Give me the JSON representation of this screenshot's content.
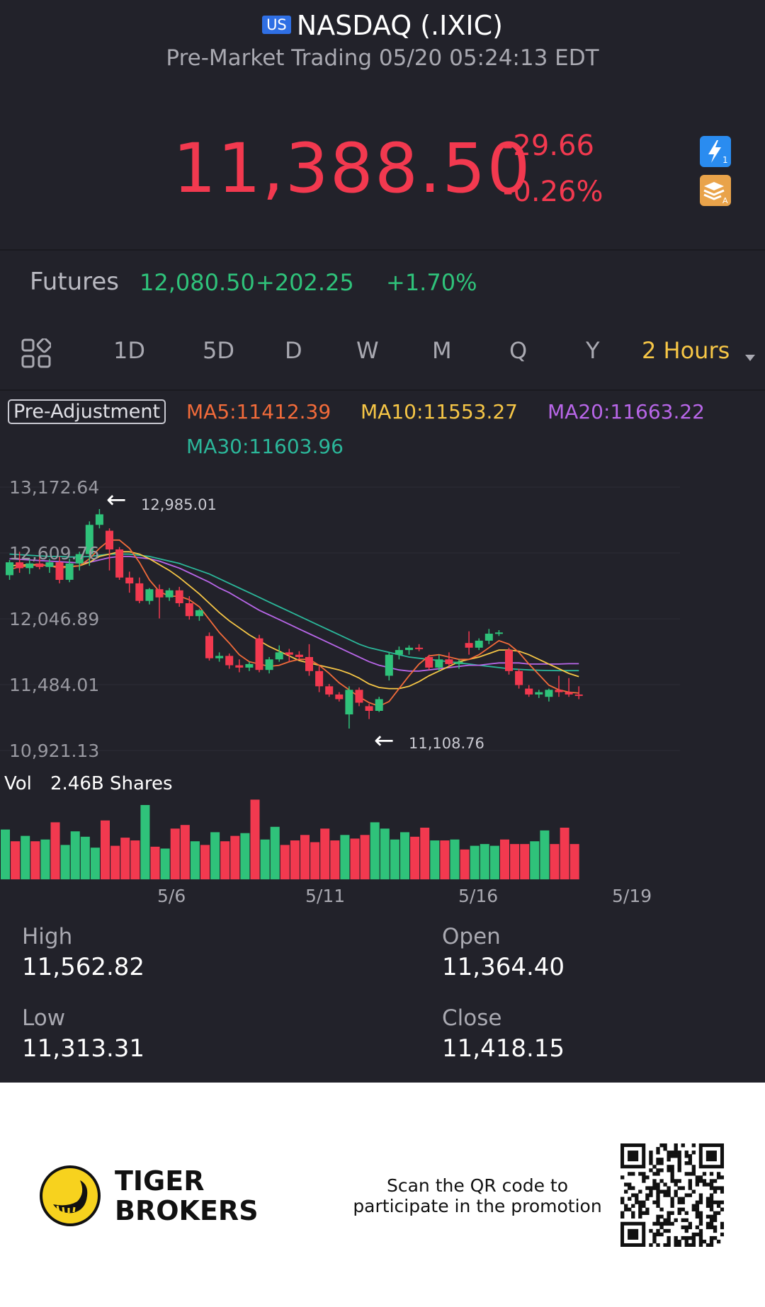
{
  "header": {
    "badge": "US",
    "title": "NASDAQ (.IXIC)",
    "subtitle": "Pre-Market Trading 05/20 05:24:13 EDT"
  },
  "quote": {
    "price": "11,388.50",
    "change": "-29.66",
    "change_pct": "-0.26%",
    "price_color": "#f2394f"
  },
  "futures": {
    "label": "Futures",
    "price": "12,080.50",
    "change": "+202.25",
    "change_pct": "+1.70%",
    "color": "#2fc27a"
  },
  "period_tabs": {
    "items": [
      "1D",
      "5D",
      "D",
      "W",
      "M",
      "Q",
      "Y"
    ],
    "selected": "2 Hours"
  },
  "indicators": {
    "adjustment": "Pre-Adjustment",
    "ma5": "MA5:11412.39",
    "ma10": "MA10:11553.27",
    "ma20": "MA20:11663.22",
    "ma30": "MA30:11603.96",
    "colors": {
      "ma5": "#f26b3a",
      "ma10": "#f6c646",
      "ma20": "#b866e8",
      "ma30": "#2bb79a"
    }
  },
  "chart": {
    "y_ticks": [
      "13,172.64",
      "12,609.76",
      "12,046.89",
      "11,484.01",
      "10,921.13"
    ],
    "high_marker": "12,985.01",
    "low_marker": "11,108.76",
    "vol_label": "Vol",
    "vol_value": "2.46B Shares",
    "x_ticks": [
      "5/6",
      "5/11",
      "5/16",
      "5/19"
    ],
    "up_color": "#2fc27a",
    "down_color": "#f2394f"
  },
  "chart_data": {
    "type": "candlestick",
    "ylim": [
      10921.13,
      13172.64
    ],
    "high_marker": 12985.01,
    "low_marker": 11108.76,
    "candles": [
      {
        "o": 12420,
        "h": 12550,
        "l": 12380,
        "c": 12530
      },
      {
        "o": 12530,
        "h": 12620,
        "l": 12440,
        "c": 12480
      },
      {
        "o": 12480,
        "h": 12560,
        "l": 12430,
        "c": 12520
      },
      {
        "o": 12520,
        "h": 12580,
        "l": 12470,
        "c": 12490
      },
      {
        "o": 12490,
        "h": 12560,
        "l": 12440,
        "c": 12530
      },
      {
        "o": 12530,
        "h": 12580,
        "l": 12350,
        "c": 12380
      },
      {
        "o": 12380,
        "h": 12560,
        "l": 12360,
        "c": 12520
      },
      {
        "o": 12520,
        "h": 12620,
        "l": 12460,
        "c": 12600
      },
      {
        "o": 12600,
        "h": 12880,
        "l": 12500,
        "c": 12850
      },
      {
        "o": 12850,
        "h": 12985,
        "l": 12820,
        "c": 12940
      },
      {
        "o": 12800,
        "h": 12820,
        "l": 12460,
        "c": 12640
      },
      {
        "o": 12640,
        "h": 12660,
        "l": 12380,
        "c": 12400
      },
      {
        "o": 12400,
        "h": 12450,
        "l": 12270,
        "c": 12350
      },
      {
        "o": 12350,
        "h": 12400,
        "l": 12180,
        "c": 12200
      },
      {
        "o": 12200,
        "h": 12310,
        "l": 12170,
        "c": 12300
      },
      {
        "o": 12300,
        "h": 12340,
        "l": 12050,
        "c": 12230
      },
      {
        "o": 12230,
        "h": 12310,
        "l": 12200,
        "c": 12290
      },
      {
        "o": 12290,
        "h": 12320,
        "l": 12150,
        "c": 12180
      },
      {
        "o": 12180,
        "h": 12240,
        "l": 12040,
        "c": 12070
      },
      {
        "o": 12070,
        "h": 12130,
        "l": 12030,
        "c": 12120
      },
      {
        "o": 11900,
        "h": 11930,
        "l": 11690,
        "c": 11710
      },
      {
        "o": 11710,
        "h": 11760,
        "l": 11680,
        "c": 11730
      },
      {
        "o": 11730,
        "h": 11750,
        "l": 11620,
        "c": 11650
      },
      {
        "o": 11650,
        "h": 11700,
        "l": 11590,
        "c": 11630
      },
      {
        "o": 11630,
        "h": 11680,
        "l": 11600,
        "c": 11660
      },
      {
        "o": 11880,
        "h": 11910,
        "l": 11590,
        "c": 11610
      },
      {
        "o": 11610,
        "h": 11720,
        "l": 11580,
        "c": 11700
      },
      {
        "o": 11700,
        "h": 11820,
        "l": 11680,
        "c": 11760
      },
      {
        "o": 11760,
        "h": 11790,
        "l": 11680,
        "c": 11740
      },
      {
        "o": 11740,
        "h": 11770,
        "l": 11700,
        "c": 11720
      },
      {
        "o": 11720,
        "h": 11830,
        "l": 11560,
        "c": 11600
      },
      {
        "o": 11600,
        "h": 11640,
        "l": 11420,
        "c": 11470
      },
      {
        "o": 11470,
        "h": 11490,
        "l": 11380,
        "c": 11400
      },
      {
        "o": 11400,
        "h": 11420,
        "l": 11340,
        "c": 11360
      },
      {
        "o": 11230,
        "h": 11470,
        "l": 11108.76,
        "c": 11440
      },
      {
        "o": 11440,
        "h": 11460,
        "l": 11300,
        "c": 11330
      },
      {
        "o": 11300,
        "h": 11320,
        "l": 11190,
        "c": 11260
      },
      {
        "o": 11260,
        "h": 11380,
        "l": 11250,
        "c": 11360
      },
      {
        "o": 11560,
        "h": 11760,
        "l": 11520,
        "c": 11740
      },
      {
        "o": 11740,
        "h": 11810,
        "l": 11700,
        "c": 11780
      },
      {
        "o": 11780,
        "h": 11820,
        "l": 11740,
        "c": 11800
      },
      {
        "o": 11800,
        "h": 11830,
        "l": 11770,
        "c": 11790
      },
      {
        "o": 11720,
        "h": 11740,
        "l": 11610,
        "c": 11630
      },
      {
        "o": 11630,
        "h": 11740,
        "l": 11600,
        "c": 11700
      },
      {
        "o": 11700,
        "h": 11760,
        "l": 11640,
        "c": 11660
      },
      {
        "o": 11660,
        "h": 11700,
        "l": 11620,
        "c": 11680
      },
      {
        "o": 11840,
        "h": 11940,
        "l": 11740,
        "c": 11800
      },
      {
        "o": 11800,
        "h": 11880,
        "l": 11780,
        "c": 11860
      },
      {
        "o": 11860,
        "h": 11960,
        "l": 11830,
        "c": 11920
      },
      {
        "o": 11920,
        "h": 11950,
        "l": 11900,
        "c": 11930
      },
      {
        "o": 11780,
        "h": 11800,
        "l": 11570,
        "c": 11600
      },
      {
        "o": 11600,
        "h": 11620,
        "l": 11450,
        "c": 11480
      },
      {
        "o": 11450,
        "h": 11480,
        "l": 11380,
        "c": 11400
      },
      {
        "o": 11400,
        "h": 11440,
        "l": 11370,
        "c": 11420
      },
      {
        "o": 11380,
        "h": 11450,
        "l": 11340,
        "c": 11440
      },
      {
        "o": 11440,
        "h": 11560,
        "l": 11380,
        "c": 11420
      },
      {
        "o": 11420,
        "h": 11540,
        "l": 11380,
        "c": 11400
      },
      {
        "o": 11400,
        "h": 11470,
        "l": 11360,
        "c": 11390
      }
    ],
    "ma5": [
      12470,
      12490,
      12500,
      12510,
      12500,
      12480,
      12490,
      12500,
      12560,
      12650,
      12720,
      12720,
      12650,
      12530,
      12380,
      12280,
      12240,
      12240,
      12210,
      12150,
      12040,
      11930,
      11840,
      11740,
      11680,
      11660,
      11640,
      11650,
      11680,
      11700,
      11700,
      11650,
      11580,
      11500,
      11440,
      11380,
      11330,
      11300,
      11340,
      11450,
      11560,
      11660,
      11730,
      11740,
      11720,
      11700,
      11700,
      11740,
      11800,
      11860,
      11830,
      11760,
      11660,
      11570,
      11480,
      11440,
      11420,
      11412
    ],
    "ma10": [
      12500,
      12505,
      12510,
      12510,
      12500,
      12490,
      12495,
      12500,
      12530,
      12580,
      12600,
      12620,
      12620,
      12600,
      12560,
      12510,
      12460,
      12400,
      12330,
      12260,
      12180,
      12100,
      12030,
      11970,
      11910,
      11860,
      11810,
      11770,
      11730,
      11690,
      11670,
      11650,
      11630,
      11610,
      11580,
      11540,
      11490,
      11460,
      11450,
      11450,
      11470,
      11510,
      11560,
      11600,
      11640,
      11680,
      11700,
      11720,
      11750,
      11780,
      11780,
      11770,
      11740,
      11700,
      11660,
      11620,
      11580,
      11553
    ],
    "ma20": [
      12560,
      12555,
      12550,
      12545,
      12540,
      12535,
      12530,
      12525,
      12530,
      12550,
      12570,
      12580,
      12580,
      12570,
      12560,
      12540,
      12510,
      12480,
      12440,
      12400,
      12360,
      12310,
      12270,
      12220,
      12170,
      12120,
      12080,
      12040,
      12000,
      11960,
      11920,
      11880,
      11840,
      11800,
      11760,
      11720,
      11680,
      11650,
      11630,
      11610,
      11600,
      11600,
      11610,
      11620,
      11630,
      11640,
      11650,
      11650,
      11660,
      11670,
      11670,
      11670,
      11660,
      11660,
      11660,
      11660,
      11663,
      11663
    ],
    "ma30": [
      12600,
      12595,
      12590,
      12585,
      12580,
      12580,
      12575,
      12575,
      12580,
      12590,
      12600,
      12600,
      12600,
      12590,
      12580,
      12560,
      12540,
      12520,
      12490,
      12460,
      12430,
      12390,
      12350,
      12310,
      12270,
      12230,
      12190,
      12150,
      12110,
      12070,
      12030,
      11990,
      11950,
      11910,
      11870,
      11830,
      11800,
      11780,
      11760,
      11740,
      11720,
      11710,
      11700,
      11690,
      11680,
      11670,
      11660,
      11650,
      11640,
      11630,
      11620,
      11615,
      11610,
      11607,
      11605,
      11604,
      11604,
      11604
    ],
    "volume": [
      0.55,
      0.42,
      0.48,
      0.42,
      0.44,
      0.63,
      0.38,
      0.53,
      0.47,
      0.35,
      0.65,
      0.37,
      0.46,
      0.43,
      0.82,
      0.36,
      0.34,
      0.56,
      0.6,
      0.42,
      0.38,
      0.52,
      0.42,
      0.48,
      0.51,
      0.88,
      0.44,
      0.58,
      0.38,
      0.43,
      0.49,
      0.41,
      0.56,
      0.43,
      0.49,
      0.45,
      0.49,
      0.63,
      0.56,
      0.44,
      0.52,
      0.47,
      0.57,
      0.43,
      0.43,
      0.44,
      0.33,
      0.37,
      0.39,
      0.37,
      0.44,
      0.39,
      0.39,
      0.42,
      0.54,
      0.39,
      0.57,
      0.39
    ],
    "x_ticks": [
      "5/6",
      "5/11",
      "5/16",
      "5/19"
    ],
    "y_ticks": [
      "13,172.64",
      "12,609.76",
      "12,046.89",
      "11,484.01",
      "10,921.13"
    ]
  },
  "stats": {
    "high_label": "High",
    "high": "11,562.82",
    "open_label": "Open",
    "open": "11,364.40",
    "low_label": "Low",
    "low": "11,313.31",
    "close_label": "Close",
    "close": "11,418.15"
  },
  "footer": {
    "brand_line1": "TIGER",
    "brand_line2": "BROKERS",
    "promo_line1": "Scan the QR code to",
    "promo_line2": "participate in the promotion"
  }
}
